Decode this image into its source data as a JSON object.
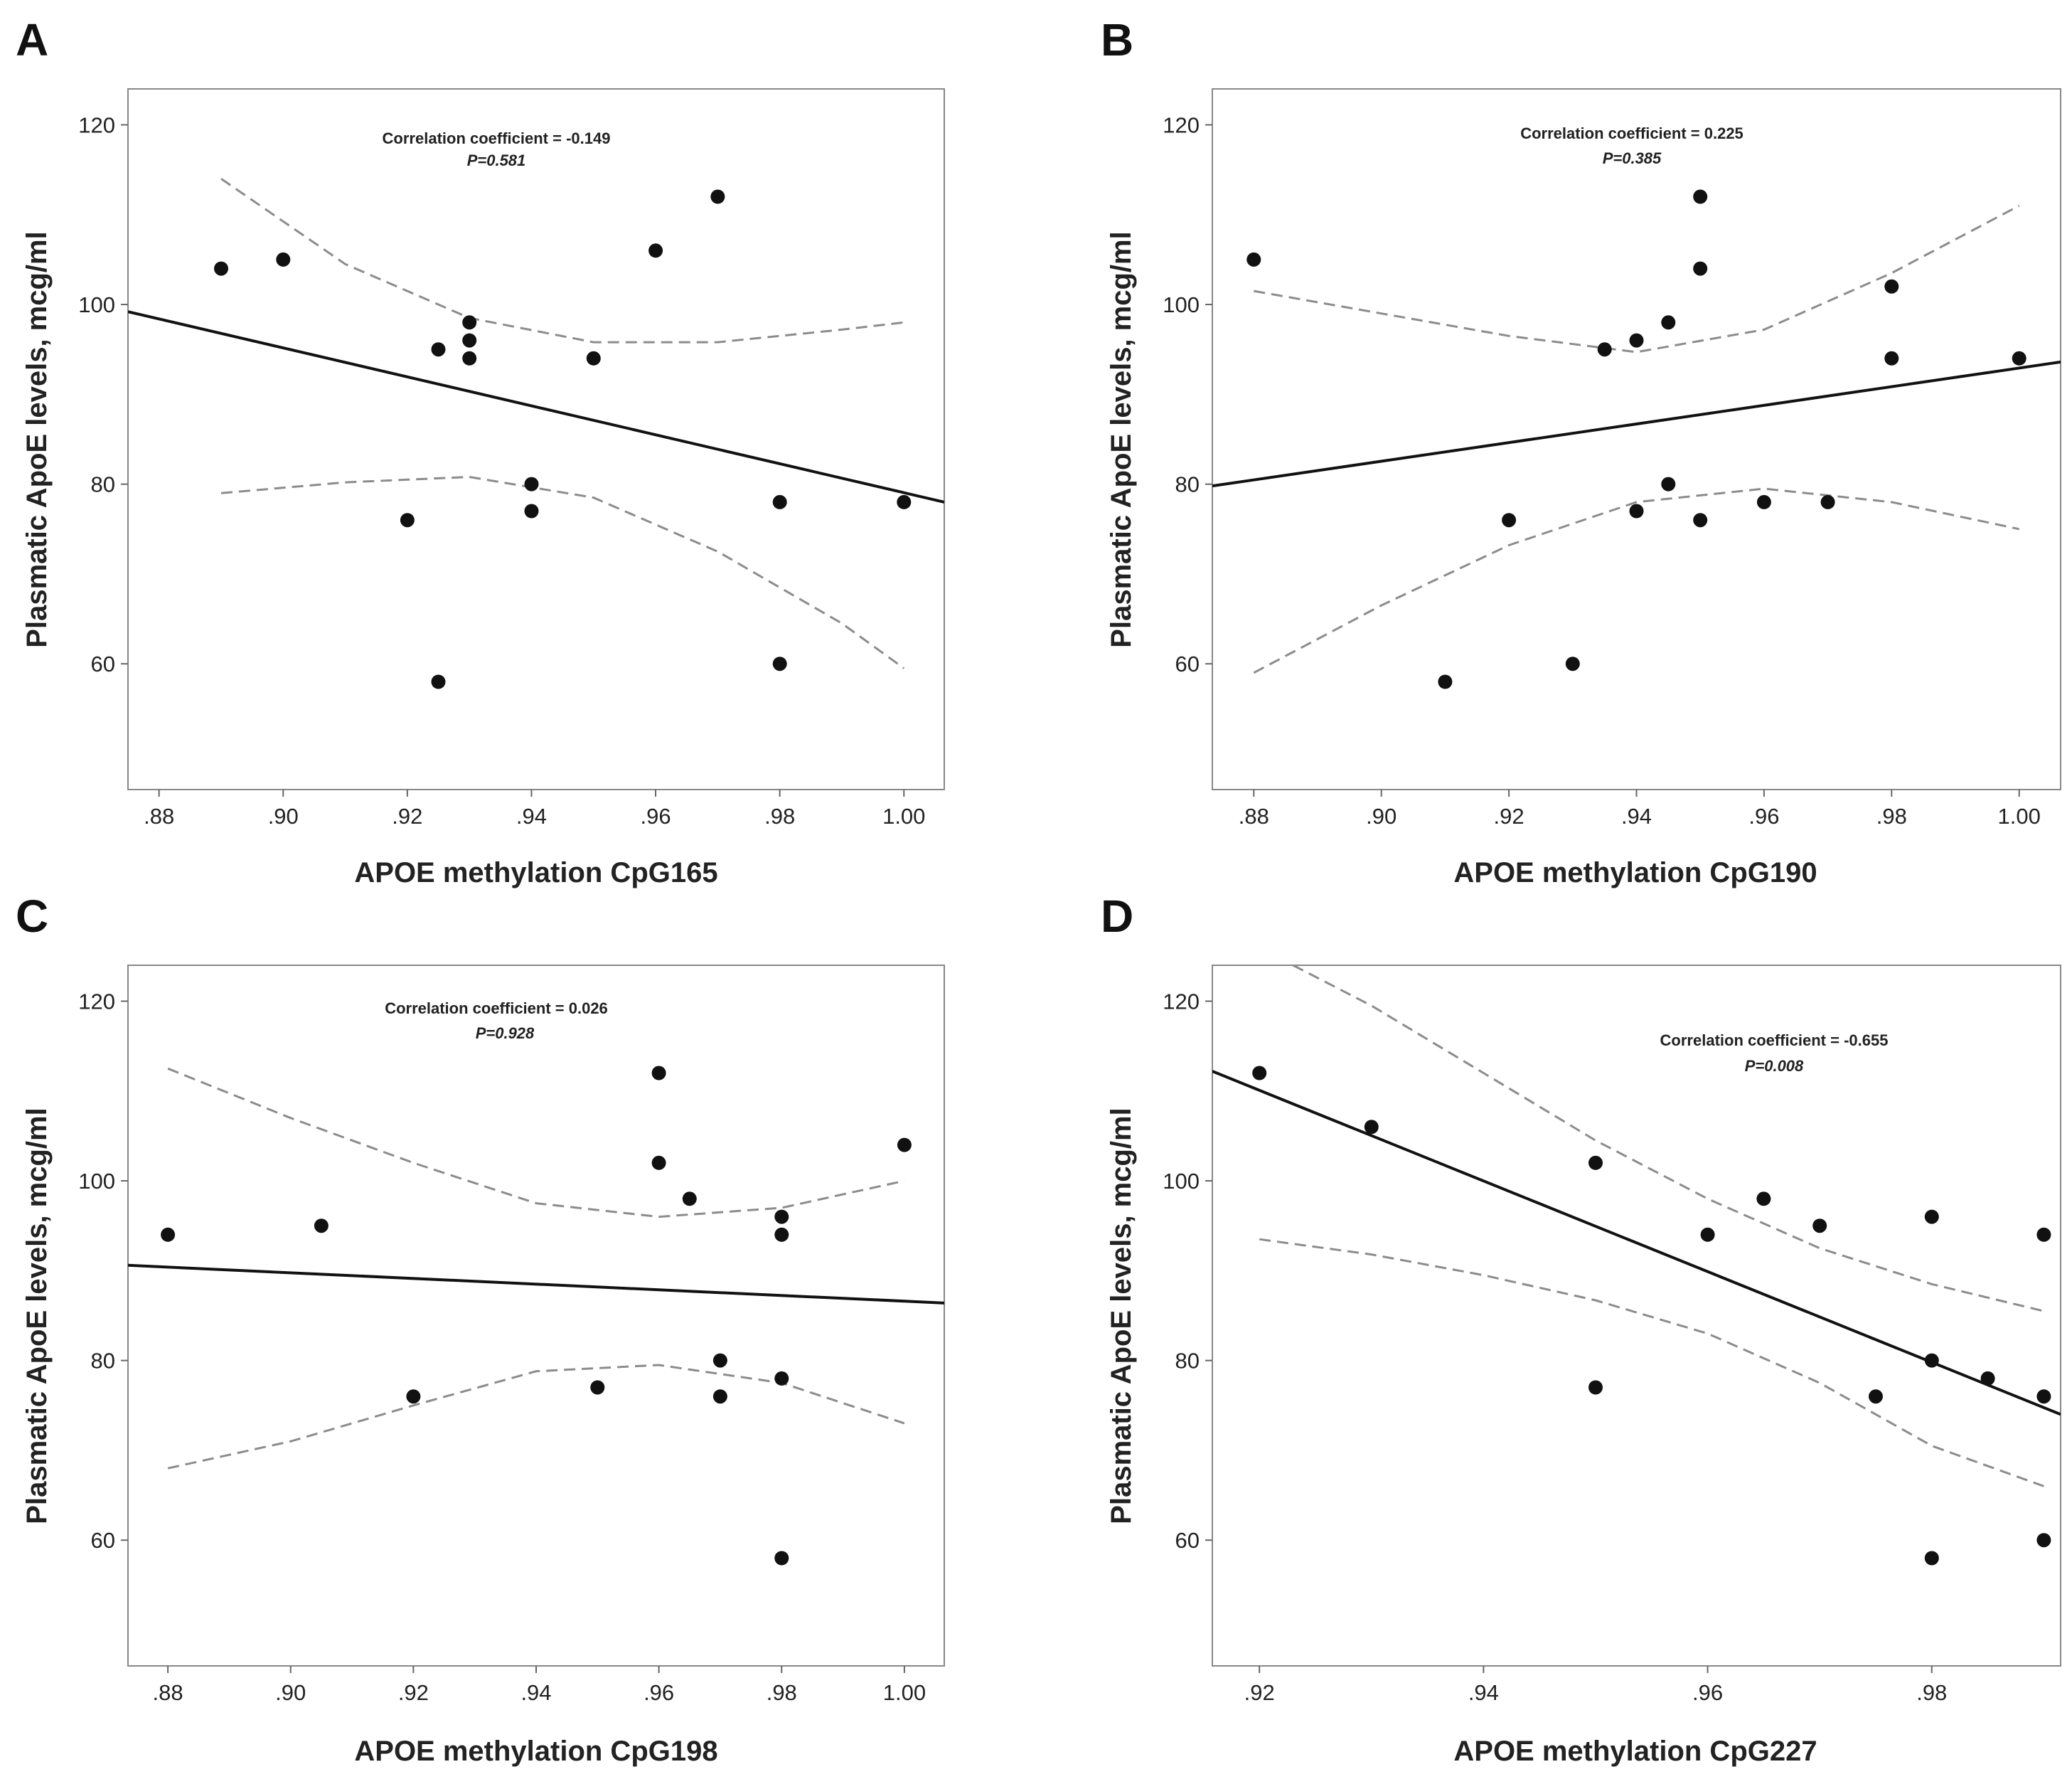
{
  "chart_data": [
    {
      "type": "scatter",
      "panel": "A",
      "xlabel": "APOE methylation CpG165",
      "ylabel": "Plasmatic ApoE levels, mcg/ml",
      "xlim": [
        0.875,
        1.0065
      ],
      "ylim": [
        46,
        124
      ],
      "x_ticks": [
        ".88",
        ".90",
        ".92",
        ".94",
        ".96",
        ".98",
        "1.00"
      ],
      "x_tick_values": [
        0.88,
        0.9,
        0.92,
        0.94,
        0.96,
        0.98,
        1.0
      ],
      "y_ticks": [
        "60",
        "80",
        "100",
        "120"
      ],
      "y_tick_values": [
        60,
        80,
        100,
        120
      ],
      "annotation": {
        "line1": "Correlation coefficient = -0.149",
        "line2": "P=0.581"
      },
      "points": [
        [
          0.89,
          104
        ],
        [
          0.9,
          105
        ],
        [
          0.92,
          76
        ],
        [
          0.925,
          95
        ],
        [
          0.925,
          58
        ],
        [
          0.93,
          98
        ],
        [
          0.93,
          96
        ],
        [
          0.93,
          94
        ],
        [
          0.94,
          80
        ],
        [
          0.94,
          77
        ],
        [
          0.95,
          94
        ],
        [
          0.96,
          106
        ],
        [
          0.97,
          112
        ],
        [
          0.98,
          78
        ],
        [
          0.98,
          60
        ],
        [
          1.0,
          78
        ]
      ],
      "fit_line": [
        [
          0.875,
          99.2
        ],
        [
          1.0065,
          78
        ]
      ],
      "ci_upper": [
        [
          0.89,
          114
        ],
        [
          0.91,
          104.5
        ],
        [
          0.93,
          98.5
        ],
        [
          0.95,
          95.8
        ],
        [
          0.97,
          95.8
        ],
        [
          0.99,
          97.2
        ],
        [
          1.0,
          98
        ]
      ],
      "ci_lower": [
        [
          0.89,
          79
        ],
        [
          0.91,
          80.2
        ],
        [
          0.93,
          80.8
        ],
        [
          0.95,
          78.5
        ],
        [
          0.97,
          72.5
        ],
        [
          0.99,
          64.5
        ],
        [
          1.0,
          59.5
        ]
      ]
    },
    {
      "type": "scatter",
      "panel": "B",
      "xlabel": "APOE methylation CpG190",
      "ylabel": "Plasmatic ApoE levels, mcg/ml",
      "xlim": [
        0.8735,
        1.0065
      ],
      "ylim": [
        46,
        124
      ],
      "x_ticks": [
        ".88",
        ".90",
        ".92",
        ".94",
        ".96",
        ".98",
        "1.00"
      ],
      "x_tick_values": [
        0.88,
        0.9,
        0.92,
        0.94,
        0.96,
        0.98,
        1.0
      ],
      "y_ticks": [
        "60",
        "80",
        "100",
        "120"
      ],
      "y_tick_values": [
        60,
        80,
        100,
        120
      ],
      "annotation": {
        "line1": "Correlation coefficient = 0.225",
        "line2": "P=0.385"
      },
      "points": [
        [
          0.88,
          105
        ],
        [
          0.91,
          58
        ],
        [
          0.92,
          76
        ],
        [
          0.93,
          60
        ],
        [
          0.935,
          95
        ],
        [
          0.94,
          96
        ],
        [
          0.94,
          77
        ],
        [
          0.945,
          98
        ],
        [
          0.945,
          80
        ],
        [
          0.95,
          112
        ],
        [
          0.95,
          104
        ],
        [
          0.95,
          76
        ],
        [
          0.96,
          78
        ],
        [
          0.97,
          78
        ],
        [
          0.98,
          102
        ],
        [
          0.98,
          94
        ],
        [
          1.0,
          94
        ]
      ],
      "fit_line": [
        [
          0.8735,
          79.8
        ],
        [
          1.0065,
          93.6
        ]
      ],
      "ci_upper": [
        [
          0.88,
          101.5
        ],
        [
          0.9,
          99
        ],
        [
          0.92,
          96.5
        ],
        [
          0.94,
          94.7
        ],
        [
          0.96,
          97.2
        ],
        [
          0.98,
          103.5
        ],
        [
          1.0,
          111
        ]
      ],
      "ci_lower": [
        [
          0.88,
          59
        ],
        [
          0.9,
          66.5
        ],
        [
          0.92,
          73.2
        ],
        [
          0.94,
          78
        ],
        [
          0.96,
          79.5
        ],
        [
          0.98,
          78
        ],
        [
          1.0,
          75
        ]
      ]
    },
    {
      "type": "scatter",
      "panel": "C",
      "xlabel": "APOE methylation CpG198",
      "ylabel": "Plasmatic ApoE levels, mcg/ml",
      "xlim": [
        0.8735,
        1.0065
      ],
      "ylim": [
        46,
        124
      ],
      "x_ticks": [
        ".88",
        ".90",
        ".92",
        ".94",
        ".96",
        ".98",
        "1.00"
      ],
      "x_tick_values": [
        0.88,
        0.9,
        0.92,
        0.94,
        0.96,
        0.98,
        1.0
      ],
      "y_ticks": [
        "60",
        "80",
        "100",
        "120"
      ],
      "y_tick_values": [
        60,
        80,
        100,
        120
      ],
      "annotation": {
        "line1": "Correlation coefficient = 0.026",
        "line2": "P=0.928"
      },
      "points": [
        [
          0.88,
          94
        ],
        [
          0.905,
          95
        ],
        [
          0.92,
          76
        ],
        [
          0.95,
          77
        ],
        [
          0.96,
          112
        ],
        [
          0.96,
          102
        ],
        [
          0.965,
          98
        ],
        [
          0.97,
          80
        ],
        [
          0.97,
          76
        ],
        [
          0.98,
          96
        ],
        [
          0.98,
          94
        ],
        [
          0.98,
          78
        ],
        [
          0.98,
          58
        ],
        [
          1.0,
          104
        ]
      ],
      "fit_line": [
        [
          0.8735,
          90.6
        ],
        [
          1.0065,
          86.4
        ]
      ],
      "ci_upper": [
        [
          0.88,
          112.5
        ],
        [
          0.9,
          107
        ],
        [
          0.92,
          102
        ],
        [
          0.94,
          97.5
        ],
        [
          0.96,
          96
        ],
        [
          0.98,
          97
        ],
        [
          1.0,
          100
        ]
      ],
      "ci_lower": [
        [
          0.88,
          68
        ],
        [
          0.9,
          71
        ],
        [
          0.92,
          75
        ],
        [
          0.94,
          78.8
        ],
        [
          0.96,
          79.5
        ],
        [
          0.98,
          77.5
        ],
        [
          1.0,
          73
        ]
      ]
    },
    {
      "type": "scatter",
      "panel": "D",
      "xlabel": "APOE methylation CpG227",
      "ylabel": "Plasmatic ApoE levels, mcg/ml",
      "xlim": [
        0.9158,
        0.9915
      ],
      "ylim": [
        46,
        124
      ],
      "x_ticks": [
        ".92",
        ".94",
        ".96",
        ".98"
      ],
      "x_tick_values": [
        0.92,
        0.94,
        0.96,
        0.98
      ],
      "y_ticks": [
        "60",
        "80",
        "100",
        "120"
      ],
      "y_tick_values": [
        60,
        80,
        100,
        120
      ],
      "annotation": {
        "line1": "Correlation coefficient = -0.655",
        "line2": "P=0.008"
      },
      "points": [
        [
          0.92,
          112
        ],
        [
          0.93,
          106
        ],
        [
          0.95,
          102
        ],
        [
          0.95,
          77
        ],
        [
          0.96,
          94
        ],
        [
          0.965,
          98
        ],
        [
          0.97,
          95
        ],
        [
          0.975,
          76
        ],
        [
          0.98,
          96
        ],
        [
          0.98,
          80
        ],
        [
          0.98,
          58
        ],
        [
          0.985,
          78
        ],
        [
          0.99,
          94
        ],
        [
          0.99,
          76
        ],
        [
          0.99,
          60
        ]
      ],
      "fit_line": [
        [
          0.9158,
          112.2
        ],
        [
          0.9915,
          74
        ]
      ],
      "ci_upper": [
        [
          0.923,
          124
        ],
        [
          0.93,
          119.5
        ],
        [
          0.94,
          112
        ],
        [
          0.95,
          104.5
        ],
        [
          0.96,
          98
        ],
        [
          0.97,
          92.5
        ],
        [
          0.98,
          88.5
        ],
        [
          0.99,
          85.5
        ]
      ],
      "ci_lower": [
        [
          0.92,
          93.5
        ],
        [
          0.93,
          91.8
        ],
        [
          0.94,
          89.5
        ],
        [
          0.95,
          86.7
        ],
        [
          0.96,
          83
        ],
        [
          0.97,
          77.5
        ],
        [
          0.98,
          70.5
        ],
        [
          0.99,
          66
        ]
      ]
    }
  ]
}
